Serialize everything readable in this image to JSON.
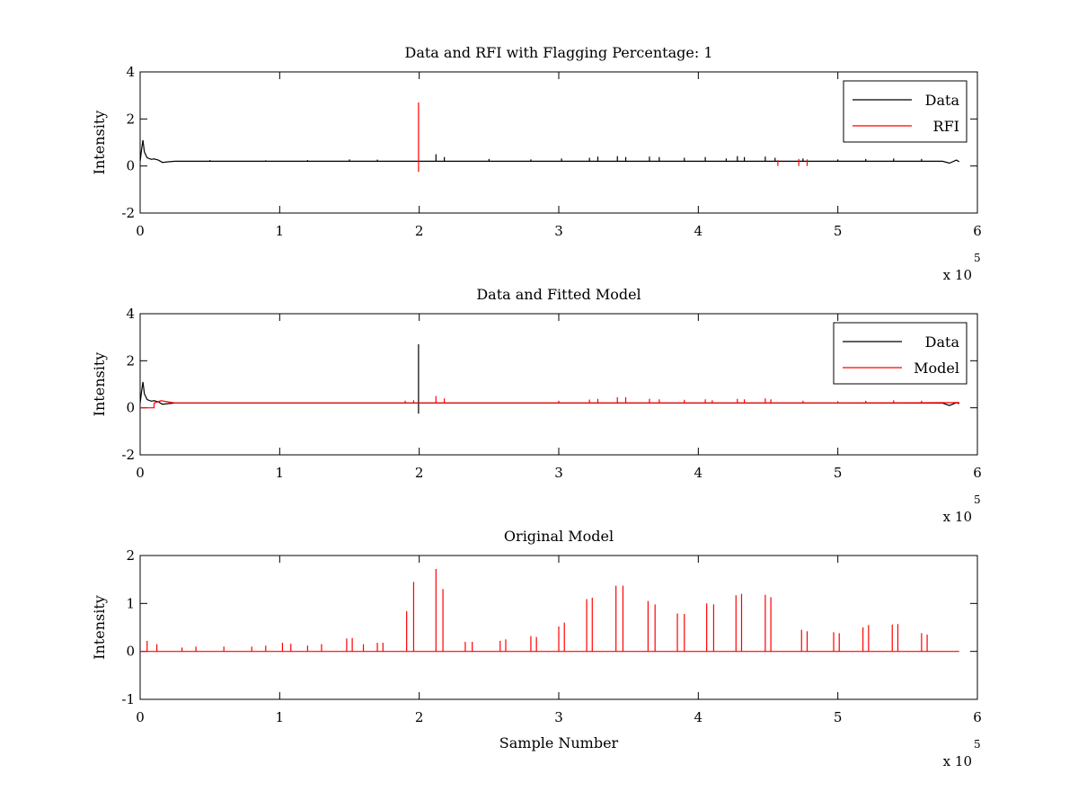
{
  "figure": {
    "background": "#ffffff"
  },
  "chart_data": [
    {
      "type": "line",
      "title": "Data and RFI with Flagging Percentage: 1",
      "xlabel": "",
      "ylabel": "Intensity",
      "xlim": [
        0,
        6
      ],
      "ylim": [
        -2,
        4
      ],
      "x_ticks": [
        "0",
        "1",
        "2",
        "3",
        "4",
        "5",
        "6"
      ],
      "y_ticks": [
        "-2",
        "0",
        "2",
        "4"
      ],
      "x_exponent": "x 10",
      "x_exponent_power": "5",
      "legend": "top-right",
      "series": [
        {
          "name": "Data",
          "color": "#000000",
          "baseline": 0.2,
          "x": [
            0,
            0.01,
            0.02,
            0.03,
            0.05,
            0.08,
            0.1,
            0.13,
            0.16,
            0.2,
            0.25,
            0.3,
            0.5,
            1,
            1.5,
            2,
            2.5,
            3,
            3.5,
            4,
            4.5,
            5,
            5.5,
            5.75,
            5.8,
            5.85,
            5.87
          ],
          "y": [
            0.2,
            0.7,
            1.1,
            0.6,
            0.35,
            0.28,
            0.3,
            0.25,
            0.15,
            0.18,
            0.2,
            0.2,
            0.2,
            0.2,
            0.2,
            0.2,
            0.2,
            0.2,
            0.2,
            0.2,
            0.2,
            0.2,
            0.2,
            0.2,
            0.12,
            0.25,
            0.18
          ],
          "spikes": [
            [
              0.5,
              0.25
            ],
            [
              0.9,
              0.24
            ],
            [
              1.2,
              0.25
            ],
            [
              1.5,
              0.28
            ],
            [
              1.7,
              0.27
            ],
            [
              2.12,
              0.5
            ],
            [
              2.18,
              0.38
            ],
            [
              2.5,
              0.3
            ],
            [
              2.8,
              0.28
            ],
            [
              3.02,
              0.32
            ],
            [
              3.22,
              0.35
            ],
            [
              3.28,
              0.4
            ],
            [
              3.42,
              0.42
            ],
            [
              3.48,
              0.38
            ],
            [
              3.65,
              0.4
            ],
            [
              3.72,
              0.38
            ],
            [
              3.9,
              0.35
            ],
            [
              4.05,
              0.38
            ],
            [
              4.2,
              0.32
            ],
            [
              4.28,
              0.42
            ],
            [
              4.33,
              0.38
            ],
            [
              4.48,
              0.4
            ],
            [
              4.55,
              0.35
            ],
            [
              4.75,
              0.32
            ],
            [
              5.0,
              0.28
            ],
            [
              5.2,
              0.3
            ],
            [
              5.4,
              0.32
            ],
            [
              5.6,
              0.3
            ]
          ]
        },
        {
          "name": "RFI",
          "color": "#ff0000",
          "spikes": [
            [
              1.995,
              2.7
            ],
            [
              1.995,
              -0.25
            ],
            [
              4.57,
              0.25
            ],
            [
              4.72,
              0.3
            ],
            [
              4.78,
              0.28
            ]
          ]
        }
      ]
    },
    {
      "type": "line",
      "title": "Data and Fitted Model",
      "xlabel": "",
      "ylabel": "Intensity",
      "xlim": [
        0,
        6
      ],
      "ylim": [
        -2,
        4
      ],
      "x_ticks": [
        "0",
        "1",
        "2",
        "3",
        "4",
        "5",
        "6"
      ],
      "y_ticks": [
        "-2",
        "0",
        "2",
        "4"
      ],
      "x_exponent": "x 10",
      "x_exponent_power": "5",
      "legend": "top-right",
      "series": [
        {
          "name": "Data",
          "color": "#000000",
          "baseline": 0.2,
          "x": [
            0,
            0.01,
            0.02,
            0.03,
            0.05,
            0.08,
            0.1,
            0.13,
            0.16,
            0.2,
            0.25,
            0.3,
            0.5,
            1,
            1.5,
            2,
            2.5,
            3,
            3.5,
            4,
            4.5,
            5,
            5.5,
            5.75,
            5.8,
            5.85,
            5.87
          ],
          "y": [
            0.2,
            0.7,
            1.1,
            0.6,
            0.35,
            0.28,
            0.3,
            0.25,
            0.15,
            0.18,
            0.2,
            0.2,
            0.2,
            0.2,
            0.2,
            0.2,
            0.2,
            0.2,
            0.2,
            0.2,
            0.2,
            0.2,
            0.2,
            0.2,
            0.1,
            0.22,
            0.18
          ],
          "spikes": [
            [
              1.995,
              2.7
            ],
            [
              1.995,
              -0.25
            ]
          ]
        },
        {
          "name": "Model",
          "color": "#ff0000",
          "baseline": 0.2,
          "x": [
            0,
            0.05,
            0.05,
            0.1,
            0.1,
            0.15,
            0.2,
            0.25,
            1,
            2,
            3,
            4,
            5,
            5.87
          ],
          "y": [
            0.0,
            0.0,
            0.0,
            0.0,
            0.2,
            0.3,
            0.25,
            0.2,
            0.2,
            0.2,
            0.2,
            0.2,
            0.2,
            0.22
          ],
          "spikes": [
            [
              1.9,
              0.3
            ],
            [
              1.96,
              0.32
            ],
            [
              2.12,
              0.5
            ],
            [
              2.18,
              0.4
            ],
            [
              3.0,
              0.3
            ],
            [
              3.22,
              0.35
            ],
            [
              3.28,
              0.38
            ],
            [
              3.42,
              0.45
            ],
            [
              3.48,
              0.45
            ],
            [
              3.65,
              0.38
            ],
            [
              3.72,
              0.36
            ],
            [
              3.9,
              0.34
            ],
            [
              4.05,
              0.36
            ],
            [
              4.1,
              0.32
            ],
            [
              4.28,
              0.38
            ],
            [
              4.33,
              0.36
            ],
            [
              4.48,
              0.4
            ],
            [
              4.52,
              0.36
            ],
            [
              4.75,
              0.3
            ],
            [
              5.0,
              0.28
            ],
            [
              5.2,
              0.3
            ],
            [
              5.4,
              0.32
            ],
            [
              5.6,
              0.3
            ]
          ]
        }
      ]
    },
    {
      "type": "line",
      "title": "Original Model",
      "xlabel": "Sample Number",
      "ylabel": "Intensity",
      "xlim": [
        0,
        6
      ],
      "ylim": [
        -1,
        2
      ],
      "x_ticks": [
        "0",
        "1",
        "2",
        "3",
        "4",
        "5",
        "6"
      ],
      "y_ticks": [
        "-1",
        "0",
        "1",
        "2"
      ],
      "x_exponent": "x 10",
      "x_exponent_power": "5",
      "legend": "none",
      "series": [
        {
          "color": "#ff0000",
          "baseline": 0.0,
          "x": [
            0,
            5.87
          ],
          "y": [
            0.0,
            0.0
          ],
          "spikes": [
            [
              0.05,
              0.22
            ],
            [
              0.12,
              0.15
            ],
            [
              0.3,
              0.08
            ],
            [
              0.4,
              0.1
            ],
            [
              0.6,
              0.1
            ],
            [
              0.8,
              0.1
            ],
            [
              0.9,
              0.12
            ],
            [
              1.02,
              0.18
            ],
            [
              1.08,
              0.16
            ],
            [
              1.2,
              0.12
            ],
            [
              1.3,
              0.15
            ],
            [
              1.48,
              0.27
            ],
            [
              1.52,
              0.28
            ],
            [
              1.6,
              0.15
            ],
            [
              1.7,
              0.18
            ],
            [
              1.74,
              0.18
            ],
            [
              1.91,
              0.84
            ],
            [
              1.96,
              1.45
            ],
            [
              2.12,
              1.72
            ],
            [
              2.17,
              1.3
            ],
            [
              2.33,
              0.2
            ],
            [
              2.38,
              0.2
            ],
            [
              2.58,
              0.22
            ],
            [
              2.62,
              0.25
            ],
            [
              2.8,
              0.32
            ],
            [
              2.84,
              0.3
            ],
            [
              3.0,
              0.52
            ],
            [
              3.04,
              0.6
            ],
            [
              3.2,
              1.09
            ],
            [
              3.24,
              1.12
            ],
            [
              3.41,
              1.37
            ],
            [
              3.46,
              1.37
            ],
            [
              3.64,
              1.05
            ],
            [
              3.69,
              0.98
            ],
            [
              3.85,
              0.79
            ],
            [
              3.9,
              0.78
            ],
            [
              4.06,
              1.0
            ],
            [
              4.11,
              0.98
            ],
            [
              4.27,
              1.17
            ],
            [
              4.31,
              1.2
            ],
            [
              4.48,
              1.18
            ],
            [
              4.52,
              1.13
            ],
            [
              4.74,
              0.45
            ],
            [
              4.78,
              0.42
            ],
            [
              4.97,
              0.4
            ],
            [
              5.01,
              0.38
            ],
            [
              5.18,
              0.5
            ],
            [
              5.22,
              0.55
            ],
            [
              5.39,
              0.56
            ],
            [
              5.43,
              0.57
            ],
            [
              5.6,
              0.38
            ],
            [
              5.64,
              0.35
            ]
          ]
        }
      ]
    }
  ]
}
